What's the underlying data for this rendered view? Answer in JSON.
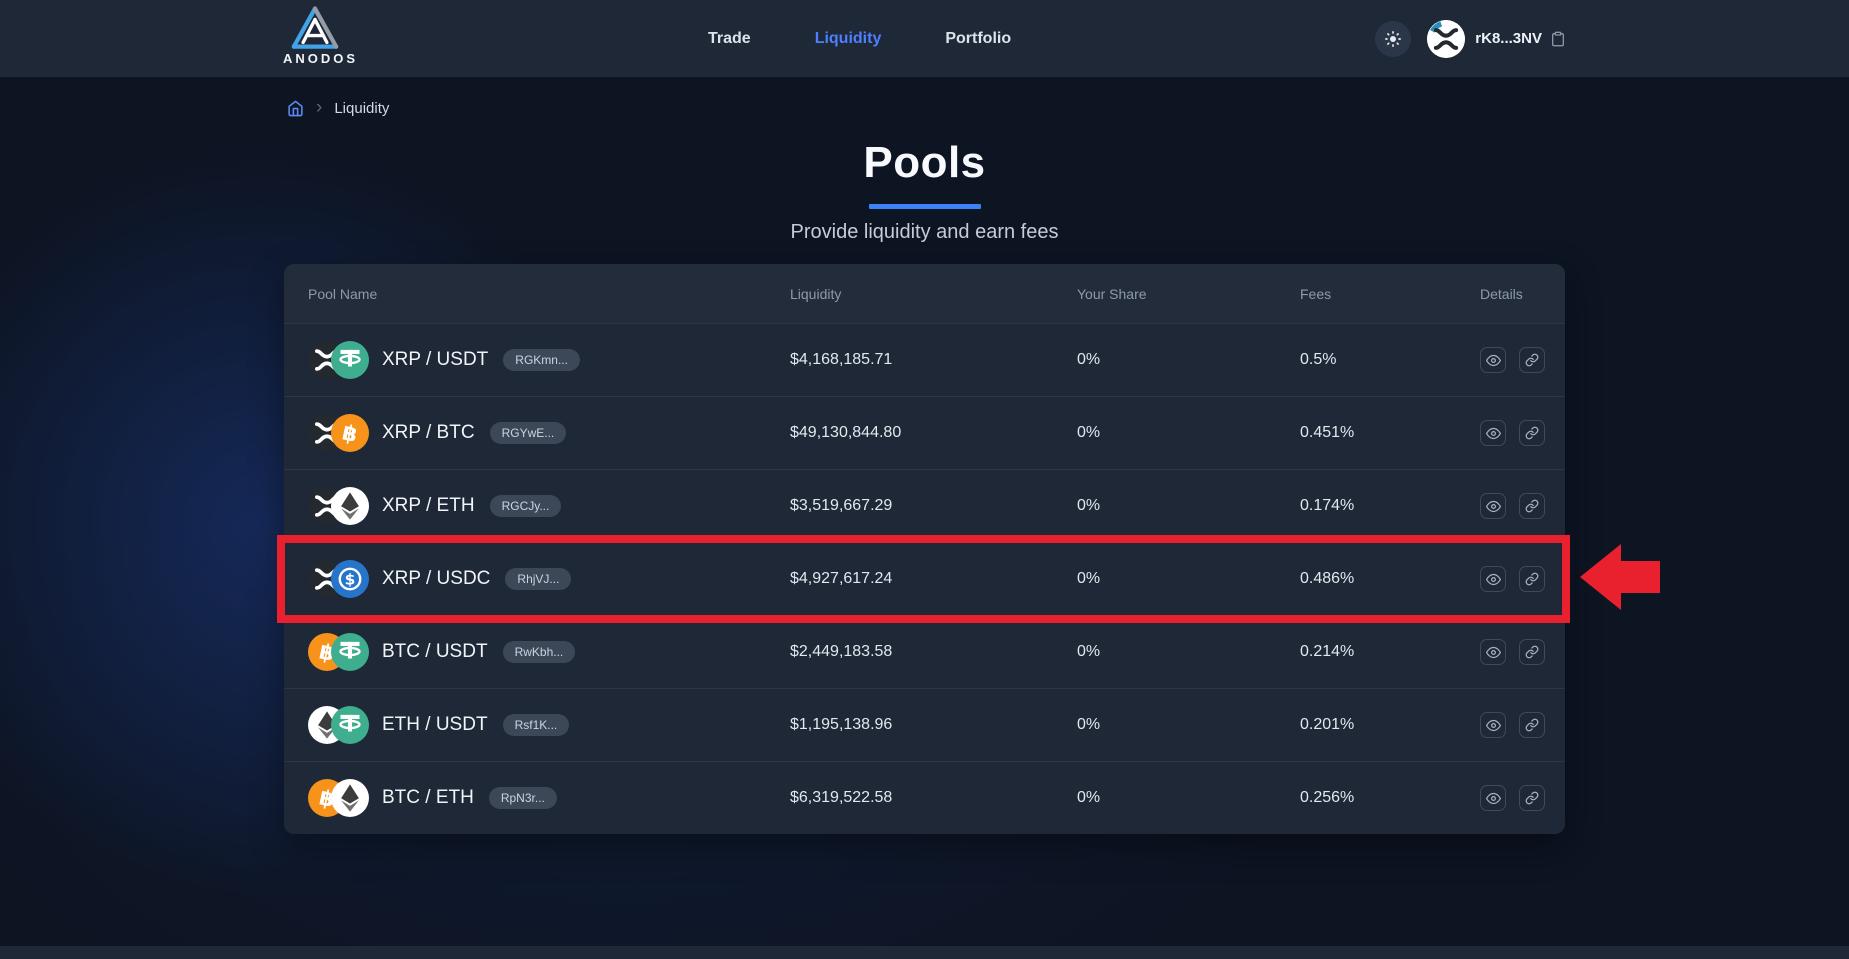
{
  "navbar": {
    "brand": "ANODOS",
    "links": [
      {
        "label": "Trade",
        "active": false
      },
      {
        "label": "Liquidity",
        "active": true
      },
      {
        "label": "Portfolio",
        "active": false
      }
    ],
    "theme_toggle_icon": "sun-icon",
    "wallet": {
      "avatar_icon": "xrp-logo",
      "address": "rK8...3NV",
      "copy_icon": "clipboard-icon"
    }
  },
  "breadcrumb": {
    "home_icon": "home-icon",
    "items": [
      "Liquidity"
    ]
  },
  "page": {
    "title": "Pools",
    "subtitle": "Provide liquidity and earn fees"
  },
  "table": {
    "columns": [
      "Pool Name",
      "Liquidity",
      "Your Share",
      "Fees",
      "Details"
    ],
    "detail_icons": [
      "eye-icon",
      "link-icon"
    ],
    "rows": [
      {
        "pair": "XRP / USDT",
        "coins": [
          "xrp",
          "usdt"
        ],
        "badge": "RGKmn...",
        "liquidity": "$4,168,185.71",
        "share": "0%",
        "fees": "0.5%",
        "highlighted": false
      },
      {
        "pair": "XRP / BTC",
        "coins": [
          "xrp",
          "btc"
        ],
        "badge": "RGYwE...",
        "liquidity": "$49,130,844.80",
        "share": "0%",
        "fees": "0.451%",
        "highlighted": false
      },
      {
        "pair": "XRP / ETH",
        "coins": [
          "xrp",
          "eth"
        ],
        "badge": "RGCJy...",
        "liquidity": "$3,519,667.29",
        "share": "0%",
        "fees": "0.174%",
        "highlighted": false
      },
      {
        "pair": "XRP / USDC",
        "coins": [
          "xrp",
          "usdc"
        ],
        "badge": "RhjVJ...",
        "liquidity": "$4,927,617.24",
        "share": "0%",
        "fees": "0.486%",
        "highlighted": true
      },
      {
        "pair": "BTC / USDT",
        "coins": [
          "btc",
          "usdt"
        ],
        "badge": "RwKbh...",
        "liquidity": "$2,449,183.58",
        "share": "0%",
        "fees": "0.214%",
        "highlighted": false
      },
      {
        "pair": "ETH / USDT",
        "coins": [
          "eth",
          "usdt"
        ],
        "badge": "Rsf1K...",
        "liquidity": "$1,195,138.96",
        "share": "0%",
        "fees": "0.201%",
        "highlighted": false
      },
      {
        "pair": "BTC / ETH",
        "coins": [
          "btc",
          "eth"
        ],
        "badge": "RpN3r...",
        "liquidity": "$6,319,522.58",
        "share": "0%",
        "fees": "0.256%",
        "highlighted": false
      }
    ]
  },
  "annotation": {
    "type": "highlight-box-with-arrow",
    "target_row": "XRP / USDC",
    "color": "#e9212e"
  },
  "colors": {
    "accent": "#4d7fff",
    "title_underline": "#3b82f6",
    "navbar_bg": "#1e2836",
    "card_bg": "#1d2634",
    "coins": {
      "xrp": "#23292f",
      "usdt": "#3fae8f",
      "btc": "#f7931a",
      "eth": "#ffffff",
      "usdc": "#2775ca"
    }
  }
}
